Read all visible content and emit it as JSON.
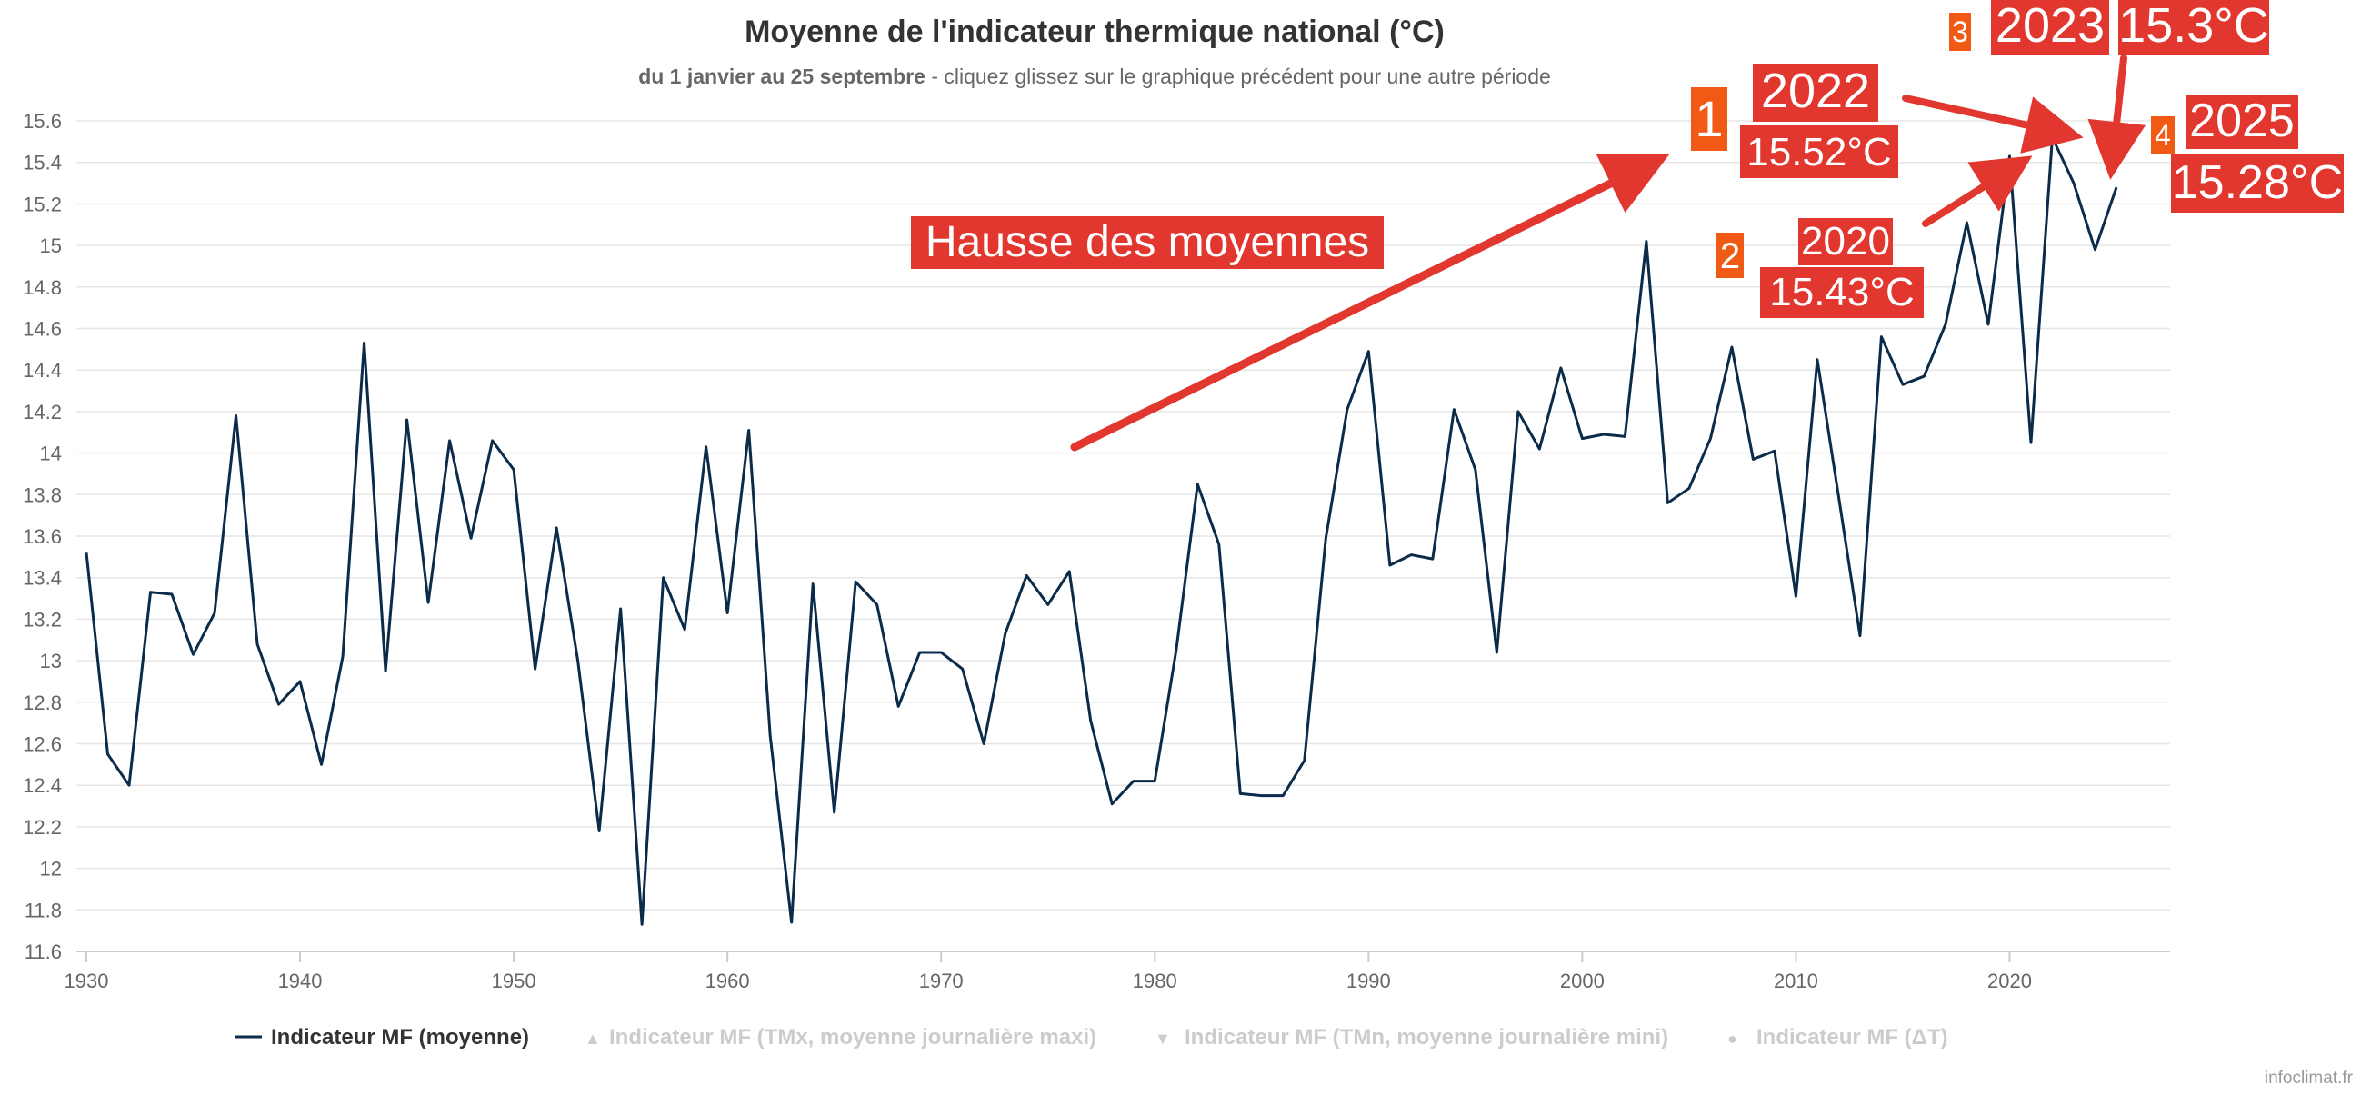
{
  "chart_data": {
    "type": "line",
    "title": "Moyenne de l'indicateur thermique national (°C)",
    "subtitle_bold": "du 1 janvier au 25 septembre",
    "subtitle_rest": " - cliquez glissez sur le graphique précédent pour une autre période",
    "xlabel": "",
    "ylabel": "",
    "xlim": [
      1930,
      2025
    ],
    "ylim": [
      11.6,
      15.6
    ],
    "x_ticks": [
      1930,
      1940,
      1950,
      1960,
      1970,
      1980,
      1990,
      2000,
      2010,
      2020
    ],
    "y_ticks": [
      "11.6",
      "11.8",
      "12",
      "12.2",
      "12.4",
      "12.6",
      "12.8",
      "13",
      "13.2",
      "13.4",
      "13.6",
      "13.8",
      "14",
      "14.2",
      "14.4",
      "14.6",
      "14.8",
      "15",
      "15.2",
      "15.4",
      "15.6"
    ],
    "grid": true,
    "legend_position": "bottom-center",
    "x": [
      1930,
      1931,
      1932,
      1933,
      1934,
      1935,
      1936,
      1937,
      1938,
      1939,
      1940,
      1941,
      1942,
      1943,
      1944,
      1945,
      1946,
      1947,
      1948,
      1949,
      1950,
      1951,
      1952,
      1953,
      1954,
      1955,
      1956,
      1957,
      1958,
      1959,
      1960,
      1961,
      1962,
      1963,
      1964,
      1965,
      1966,
      1967,
      1968,
      1969,
      1970,
      1971,
      1972,
      1973,
      1974,
      1975,
      1976,
      1977,
      1978,
      1979,
      1980,
      1981,
      1982,
      1983,
      1984,
      1985,
      1986,
      1987,
      1988,
      1989,
      1990,
      1991,
      1992,
      1993,
      1994,
      1995,
      1996,
      1997,
      1998,
      1999,
      2000,
      2001,
      2002,
      2003,
      2004,
      2005,
      2006,
      2007,
      2008,
      2009,
      2010,
      2011,
      2012,
      2013,
      2014,
      2015,
      2016,
      2017,
      2018,
      2019,
      2020,
      2021,
      2022,
      2023,
      2024,
      2025
    ],
    "series": [
      {
        "name": "Indicateur MF (moyenne)",
        "color": "#0b2b4a",
        "visible": true,
        "values": [
          13.52,
          12.55,
          12.4,
          13.33,
          13.32,
          13.03,
          13.23,
          14.18,
          13.08,
          12.79,
          12.9,
          12.5,
          13.02,
          14.53,
          12.95,
          14.16,
          13.28,
          14.06,
          13.59,
          14.06,
          13.92,
          12.96,
          13.64,
          13.0,
          12.18,
          13.25,
          11.73,
          13.4,
          13.15,
          14.03,
          13.23,
          14.11,
          12.64,
          11.74,
          13.37,
          12.27,
          13.38,
          13.27,
          12.78,
          13.04,
          13.04,
          12.96,
          12.6,
          13.13,
          13.41,
          13.27,
          13.43,
          12.71,
          12.31,
          12.42,
          12.42,
          13.05,
          13.85,
          13.56,
          12.36,
          12.35,
          12.35,
          12.52,
          13.59,
          14.21,
          14.49,
          13.46,
          13.51,
          13.49,
          14.21,
          13.92,
          13.04,
          14.2,
          14.02,
          14.41,
          14.07,
          14.09,
          14.08,
          15.02,
          13.76,
          13.83,
          14.07,
          14.51,
          13.97,
          14.01,
          13.31,
          14.45,
          13.79,
          13.12,
          14.56,
          14.33,
          14.37,
          14.62,
          15.11,
          14.62,
          15.43,
          14.05,
          15.52,
          15.3,
          14.98,
          15.28
        ]
      },
      {
        "name": "Indicateur MF (TMx, moyenne journalière maxi)",
        "visible": false,
        "symbol": "▲"
      },
      {
        "name": "Indicateur MF (TMn, moyenne journalière mini)",
        "visible": false,
        "symbol": "▼"
      },
      {
        "name": "Indicateur MF (ΔT)",
        "visible": false,
        "symbol": "●"
      }
    ],
    "annotations": [
      {
        "label": "Hausse des moyennes"
      },
      {
        "rank": "1",
        "year": "2022",
        "value": "15.52°C"
      },
      {
        "rank": "2",
        "year": "2020",
        "value": "15.43°C"
      },
      {
        "rank": "3",
        "year": "2023",
        "value": "15.3°C"
      },
      {
        "rank": "4",
        "year": "2025",
        "value": "15.28°C"
      }
    ],
    "annotation_color": "#e2372f",
    "rank_color": "#f05a14",
    "credit": "infoclimat.fr"
  }
}
